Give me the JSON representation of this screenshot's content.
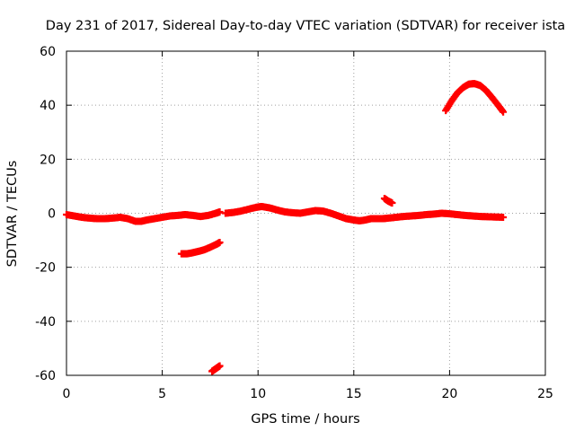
{
  "chart_data": {
    "type": "scatter",
    "title": "Day 231 of 2017, Sidereal Day-to-day VTEC variation (SDTVAR) for receiver ista",
    "xlabel": "GPS time / hours",
    "ylabel": "SDTVAR / TECUs",
    "xlim": [
      0,
      25
    ],
    "ylim": [
      -60,
      60
    ],
    "xticks": [
      0,
      5,
      10,
      15,
      20,
      25
    ],
    "yticks": [
      -60,
      -40,
      -20,
      0,
      20,
      40,
      60
    ],
    "grid": true,
    "legend": "none",
    "marker": "plus",
    "color": "#ff0000",
    "series": [
      {
        "name": "main-track",
        "x": [
          0.0,
          0.4,
          0.8,
          1.2,
          1.6,
          2.0,
          2.4,
          2.8,
          3.2,
          3.6,
          3.9,
          4.2,
          4.6,
          5.0,
          5.4,
          5.8,
          6.2,
          6.6,
          7.0,
          7.4,
          7.8,
          8.0
        ],
        "y": [
          -0.5,
          -1.0,
          -1.5,
          -1.8,
          -2.0,
          -2.0,
          -1.8,
          -1.5,
          -2.0,
          -3.0,
          -3.0,
          -2.5,
          -2.0,
          -1.5,
          -1.0,
          -0.8,
          -0.5,
          -0.8,
          -1.2,
          -0.8,
          0.0,
          0.5
        ]
      },
      {
        "name": "main-track-2",
        "x": [
          8.3,
          8.7,
          9.1,
          9.5,
          9.9,
          10.2,
          10.6,
          11.0,
          11.4,
          11.8,
          12.2,
          12.6,
          13.0,
          13.4,
          13.8,
          14.2,
          14.6,
          15.0,
          15.3,
          15.6,
          15.9,
          16.2,
          16.5,
          16.8,
          17.2,
          17.6,
          18.0,
          18.4,
          18.8,
          19.2,
          19.6,
          20.0,
          20.4,
          20.8,
          21.2,
          21.6,
          22.0,
          22.4,
          22.8
        ],
        "y": [
          0.0,
          0.3,
          0.8,
          1.5,
          2.2,
          2.5,
          2.0,
          1.2,
          0.5,
          0.2,
          0.0,
          0.5,
          1.0,
          0.8,
          0.0,
          -1.0,
          -2.0,
          -2.5,
          -2.8,
          -2.5,
          -2.0,
          -2.0,
          -2.0,
          -1.8,
          -1.5,
          -1.2,
          -1.0,
          -0.8,
          -0.5,
          -0.3,
          0.0,
          -0.2,
          -0.5,
          -0.8,
          -1.0,
          -1.2,
          -1.3,
          -1.4,
          -1.5
        ]
      },
      {
        "name": "lower-arc",
        "x": [
          6.0,
          6.3,
          6.6,
          6.9,
          7.2,
          7.5,
          7.8,
          8.0
        ],
        "y": [
          -15.0,
          -15.0,
          -14.6,
          -14.1,
          -13.5,
          -12.6,
          -11.6,
          -10.8
        ]
      },
      {
        "name": "bottom-blip",
        "x": [
          7.6,
          7.8,
          8.0
        ],
        "y": [
          -58.5,
          -57.5,
          -56.5
        ]
      },
      {
        "name": "spike",
        "x": [
          16.6,
          16.8,
          17.0
        ],
        "y": [
          5.5,
          4.5,
          3.8
        ]
      },
      {
        "name": "upper-arc",
        "x": [
          19.8,
          20.1,
          20.4,
          20.7,
          21.0,
          21.3,
          21.6,
          21.9,
          22.2,
          22.5,
          22.8
        ],
        "y": [
          38.0,
          41.5,
          44.5,
          46.5,
          47.8,
          48.0,
          47.3,
          45.5,
          43.0,
          40.3,
          37.5
        ]
      }
    ]
  }
}
